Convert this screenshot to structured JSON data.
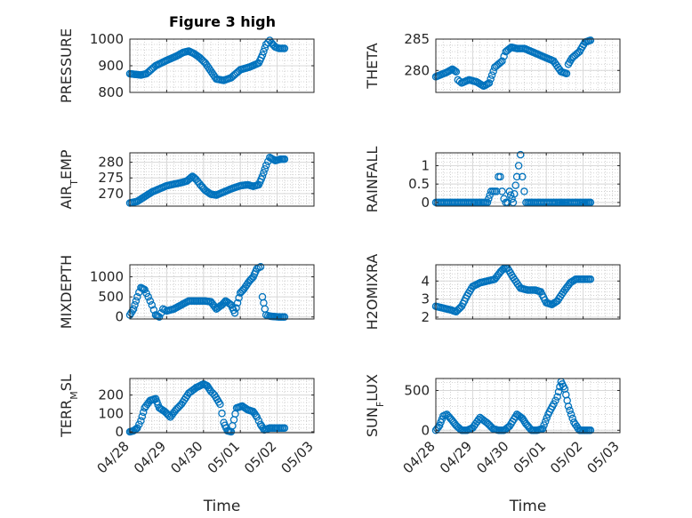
{
  "figure": {
    "title": "Figure 3 high"
  },
  "chart_data": [
    {
      "type": "scatter",
      "ylabel": "PRESSURE",
      "ylim": [
        800,
        1000
      ],
      "yticks": [
        800,
        900,
        1000
      ],
      "xlim": [
        0,
        5
      ],
      "grid": true,
      "marker": "open-circle",
      "color": "#0072BD",
      "series": [
        {
          "x": [
            0,
            0.3,
            0.45,
            0.7,
            1,
            1.25,
            1.45,
            1.6,
            1.75,
            1.9,
            2.05,
            2.2,
            2.35,
            2.55,
            2.75,
            3,
            3.25,
            3.5,
            3.6,
            3.7,
            3.8,
            3.85,
            3.95,
            4.05,
            4.2
          ],
          "y": [
            870,
            865,
            870,
            900,
            920,
            935,
            950,
            955,
            945,
            930,
            910,
            880,
            850,
            845,
            855,
            885,
            895,
            910,
            940,
            980,
            995,
            985,
            970,
            965,
            965
          ]
        }
      ]
    },
    {
      "type": "scatter",
      "ylabel": "THETA",
      "ylim": [
        276.5,
        285
      ],
      "yticks": [
        280,
        285
      ],
      "xlim": [
        0,
        5
      ],
      "grid": true,
      "marker": "open-circle",
      "color": "#0072BD",
      "series": [
        {
          "x": [
            0,
            0.3,
            0.45,
            0.55,
            0.6,
            0.7,
            0.9,
            1.1,
            1.3,
            1.45,
            1.6,
            1.8,
            1.9,
            2.05,
            2.2,
            2.4,
            2.6,
            2.8,
            3.0,
            3.2,
            3.4,
            3.55,
            3.6,
            3.7,
            3.9,
            4.05,
            4.2
          ],
          "y": [
            279,
            279.7,
            280.2,
            279.8,
            278.5,
            278,
            278.5,
            278.2,
            277.5,
            278,
            280.5,
            281.5,
            283,
            283.7,
            283.5,
            283.5,
            283,
            282.5,
            282,
            281.5,
            279.8,
            279.5,
            281,
            282,
            283,
            284.5,
            284.8
          ]
        }
      ]
    },
    {
      "type": "scatter",
      "ylabel": "AIR_TEMP",
      "ylim": [
        266,
        283
      ],
      "yticks": [
        270,
        275,
        280
      ],
      "xlim": [
        0,
        5
      ],
      "grid": true,
      "marker": "open-circle",
      "color": "#0072BD",
      "series": [
        {
          "x": [
            0,
            0.2,
            0.4,
            0.6,
            0.8,
            1,
            1.2,
            1.4,
            1.55,
            1.7,
            1.8,
            1.9,
            2.05,
            2.2,
            2.35,
            2.55,
            2.75,
            3,
            3.2,
            3.35,
            3.5,
            3.6,
            3.7,
            3.8,
            3.95,
            4.1,
            4.2
          ],
          "y": [
            267,
            267.5,
            269,
            270.5,
            271.5,
            272.5,
            273,
            273.5,
            274,
            275.5,
            274.5,
            273,
            271,
            269.8,
            269.5,
            270.5,
            271.5,
            272.5,
            272.8,
            272.3,
            272.8,
            275.5,
            279,
            281.5,
            280.5,
            281,
            281
          ]
        }
      ]
    },
    {
      "type": "scatter",
      "ylabel": "RAINFALL",
      "ylim": [
        -0.1,
        1.35
      ],
      "yticks": [
        0,
        0.5,
        1
      ],
      "xlim": [
        0,
        5
      ],
      "grid": true,
      "marker": "open-circle",
      "color": "#0072BD",
      "series": [
        {
          "x": [
            0,
            0.25,
            0.5,
            0.75,
            1,
            1.2,
            1.4,
            1.5,
            1.55,
            1.6,
            1.65,
            1.7,
            1.75,
            1.8,
            1.85,
            1.9,
            1.95,
            2.0,
            2.1,
            2.2,
            2.25,
            2.3,
            2.35,
            2.4,
            2.45,
            2.5,
            2.7,
            3,
            3.3,
            3.6,
            3.9,
            4.2
          ],
          "y": [
            0,
            0,
            0,
            0,
            0,
            0,
            0,
            0.3,
            0.3,
            0.3,
            0.3,
            0.7,
            0.7,
            0.3,
            0.1,
            0,
            0,
            0.3,
            0,
            0.7,
            1.0,
            1.3,
            0.7,
            0.3,
            0,
            0,
            0,
            0,
            0,
            0,
            0,
            0
          ]
        }
      ]
    },
    {
      "type": "scatter",
      "ylabel": "MIXDEPTH",
      "ylim": [
        -50,
        1300
      ],
      "yticks": [
        0,
        500,
        1000
      ],
      "xlim": [
        0,
        5
      ],
      "grid": true,
      "marker": "open-circle",
      "color": "#0072BD",
      "series": [
        {
          "x": [
            0,
            0.1,
            0.2,
            0.3,
            0.4,
            0.5,
            0.6,
            0.7,
            0.8,
            0.9,
            1,
            1.2,
            1.4,
            1.6,
            1.8,
            2,
            2.2,
            2.35,
            2.5,
            2.6,
            2.75,
            2.85,
            3,
            3.1,
            3.25,
            3.35,
            3.45,
            3.55,
            3.6,
            3.7,
            3.8,
            3.9,
            4.05,
            4.2
          ],
          "y": [
            50,
            200,
            500,
            730,
            680,
            500,
            300,
            50,
            0,
            200,
            150,
            200,
            300,
            400,
            400,
            400,
            380,
            200,
            300,
            400,
            300,
            100,
            600,
            700,
            900,
            1000,
            1200,
            1250,
            500,
            50,
            20,
            10,
            0,
            0
          ]
        }
      ]
    },
    {
      "type": "scatter",
      "ylabel": "H2OMIXRA",
      "ylim": [
        1.9,
        4.9
      ],
      "yticks": [
        2,
        3,
        4
      ],
      "xlim": [
        0,
        5
      ],
      "grid": true,
      "marker": "open-circle",
      "color": "#0072BD",
      "series": [
        {
          "x": [
            0,
            0.2,
            0.4,
            0.55,
            0.7,
            0.85,
            1,
            1.2,
            1.4,
            1.6,
            1.75,
            1.85,
            1.95,
            2.1,
            2.3,
            2.5,
            2.7,
            2.85,
            3,
            3.15,
            3.3,
            3.5,
            3.65,
            3.8,
            4,
            4.2
          ],
          "y": [
            2.6,
            2.5,
            2.4,
            2.3,
            2.6,
            3.2,
            3.7,
            3.9,
            4.0,
            4.1,
            4.5,
            4.7,
            4.7,
            4.2,
            3.6,
            3.5,
            3.5,
            3.4,
            2.8,
            2.7,
            2.9,
            3.5,
            3.9,
            4.1,
            4.1,
            4.1
          ]
        }
      ]
    },
    {
      "type": "scatter",
      "ylabel": "TERR_MSL",
      "ylim": [
        -5,
        290
      ],
      "yticks": [
        0,
        100,
        200
      ],
      "xlim": [
        0,
        5
      ],
      "grid": true,
      "marker": "open-circle",
      "color": "#0072BD",
      "series": [
        {
          "x": [
            0,
            0.1,
            0.2,
            0.3,
            0.4,
            0.55,
            0.7,
            0.8,
            0.95,
            1.1,
            1.25,
            1.4,
            1.6,
            1.8,
            2,
            2.1,
            2.2,
            2.3,
            2.45,
            2.55,
            2.65,
            2.75,
            2.9,
            3.05,
            3.2,
            3.35,
            3.45,
            3.55,
            3.65,
            3.8,
            4,
            4.2
          ],
          "y": [
            0,
            5,
            20,
            60,
            130,
            170,
            180,
            130,
            110,
            80,
            120,
            150,
            210,
            240,
            260,
            250,
            220,
            200,
            150,
            50,
            5,
            0,
            130,
            140,
            120,
            110,
            80,
            40,
            10,
            20,
            20,
            20
          ]
        }
      ]
    },
    {
      "type": "scatter",
      "ylabel": "SUN_FLUX",
      "ylim": [
        -30,
        650
      ],
      "yticks": [
        0,
        500
      ],
      "xlim": [
        0,
        5
      ],
      "grid": true,
      "marker": "open-circle",
      "color": "#0072BD",
      "series": [
        {
          "x": [
            0,
            0.1,
            0.2,
            0.3,
            0.45,
            0.55,
            0.7,
            0.85,
            1.0,
            1.2,
            1.4,
            1.55,
            1.7,
            1.85,
            2.0,
            2.2,
            2.35,
            2.45,
            2.6,
            2.75,
            2.9,
            3.05,
            3.2,
            3.3,
            3.4,
            3.5,
            3.6,
            3.75,
            3.9,
            4.05,
            4.2
          ],
          "y": [
            0,
            60,
            180,
            200,
            120,
            60,
            0,
            0,
            30,
            160,
            90,
            20,
            0,
            0,
            50,
            200,
            150,
            80,
            0,
            0,
            20,
            200,
            330,
            420,
            610,
            520,
            300,
            100,
            0,
            0,
            0
          ]
        }
      ]
    }
  ],
  "xaxis": {
    "ticks": [
      0,
      1,
      2,
      3,
      4,
      5
    ],
    "ticklabels": [
      "04/28",
      "04/29",
      "04/30",
      "05/01",
      "05/02",
      "05/03"
    ],
    "label": "Time"
  }
}
